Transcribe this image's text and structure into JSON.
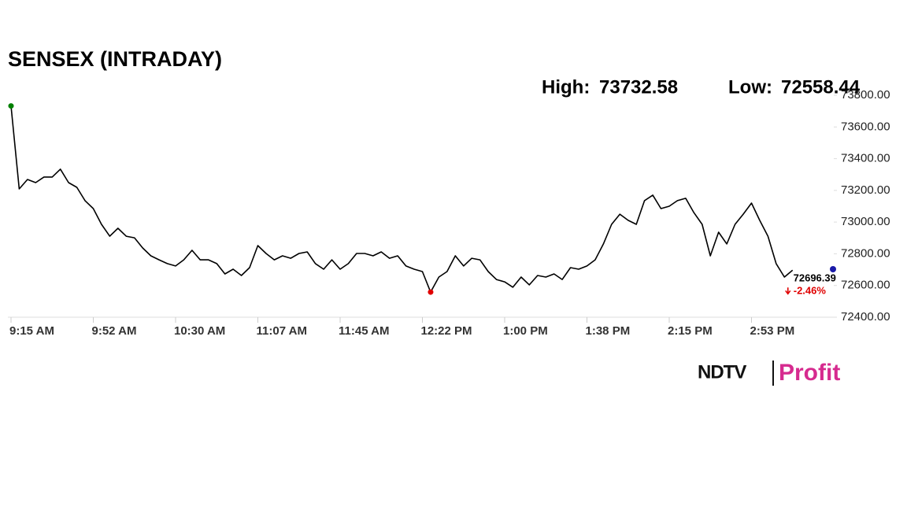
{
  "chart_data": {
    "type": "line",
    "title": "SENSEX (INTRADAY)",
    "high_label": "High:",
    "high": 73732.58,
    "low_label": "Low:",
    "low": 72558.44,
    "last_value": 72696.39,
    "change": "-2.46%",
    "logo": {
      "left": "NDTV",
      "right": "Profit"
    },
    "categories": [
      "9:15 AM",
      null,
      null,
      null,
      null,
      null,
      null,
      null,
      null,
      null,
      "9:52 AM",
      null,
      null,
      null,
      null,
      null,
      null,
      null,
      null,
      null,
      "10:30 AM",
      null,
      null,
      null,
      null,
      null,
      null,
      null,
      null,
      null,
      "11:07 AM",
      null,
      null,
      null,
      null,
      null,
      null,
      null,
      null,
      null,
      "11:45 AM",
      null,
      null,
      null,
      null,
      null,
      null,
      null,
      null,
      null,
      "12:22 PM",
      null,
      null,
      null,
      null,
      null,
      null,
      null,
      null,
      null,
      "1:00 PM",
      null,
      null,
      null,
      null,
      null,
      null,
      null,
      null,
      null,
      "1:38 PM",
      null,
      null,
      null,
      null,
      null,
      null,
      null,
      null,
      null,
      "2:15 PM",
      null,
      null,
      null,
      null,
      null,
      null,
      null,
      null,
      null,
      "2:53 PM",
      null,
      null,
      null,
      null,
      null,
      null,
      null,
      null,
      null,
      null
    ],
    "series": [
      {
        "name": "SENSEX",
        "color": "#000000",
        "values": [
          73732.58,
          73209,
          73269,
          73249,
          73284,
          73284,
          73334,
          73249,
          73219,
          73135,
          73085,
          72986,
          72911,
          72961,
          72911,
          72901,
          72837,
          72787,
          72762,
          72738,
          72723,
          72762,
          72822,
          72762,
          72762,
          72738,
          72673,
          72703,
          72663,
          72713,
          72852,
          72802,
          72762,
          72787,
          72772,
          72802,
          72812,
          72738,
          72703,
          72762,
          72703,
          72738,
          72802,
          72802,
          72787,
          72812,
          72772,
          72787,
          72723,
          72703,
          72688,
          72558.44,
          72653,
          72688,
          72787,
          72723,
          72772,
          72762,
          72688,
          72638,
          72623,
          72589,
          72653,
          72604,
          72663,
          72653,
          72673,
          72638,
          72713,
          72703,
          72723,
          72762,
          72862,
          72986,
          73050,
          73011,
          72986,
          73135,
          73170,
          73085,
          73100,
          73135,
          73150,
          73060,
          72986,
          72787,
          72936,
          72862,
          72986,
          73050,
          73120,
          73011,
          72911,
          72738,
          72653,
          72696.39,
          null,
          null,
          null,
          null,
          null
        ]
      }
    ],
    "ylim": [
      72400,
      73800
    ],
    "yticks": [
      {
        "value": 72400,
        "label": "72400.00"
      },
      {
        "value": 72600,
        "label": "72600.00"
      },
      {
        "value": 72800,
        "label": "72800.00"
      },
      {
        "value": 73000,
        "label": "73000.00"
      },
      {
        "value": 73200,
        "label": "73200.00"
      },
      {
        "value": 73400,
        "label": "73400.00"
      },
      {
        "value": 73600,
        "label": "73600.00"
      },
      {
        "value": 73800,
        "label": "73800.00"
      }
    ],
    "high_color": "#008000",
    "low_color": "#e00000"
  }
}
